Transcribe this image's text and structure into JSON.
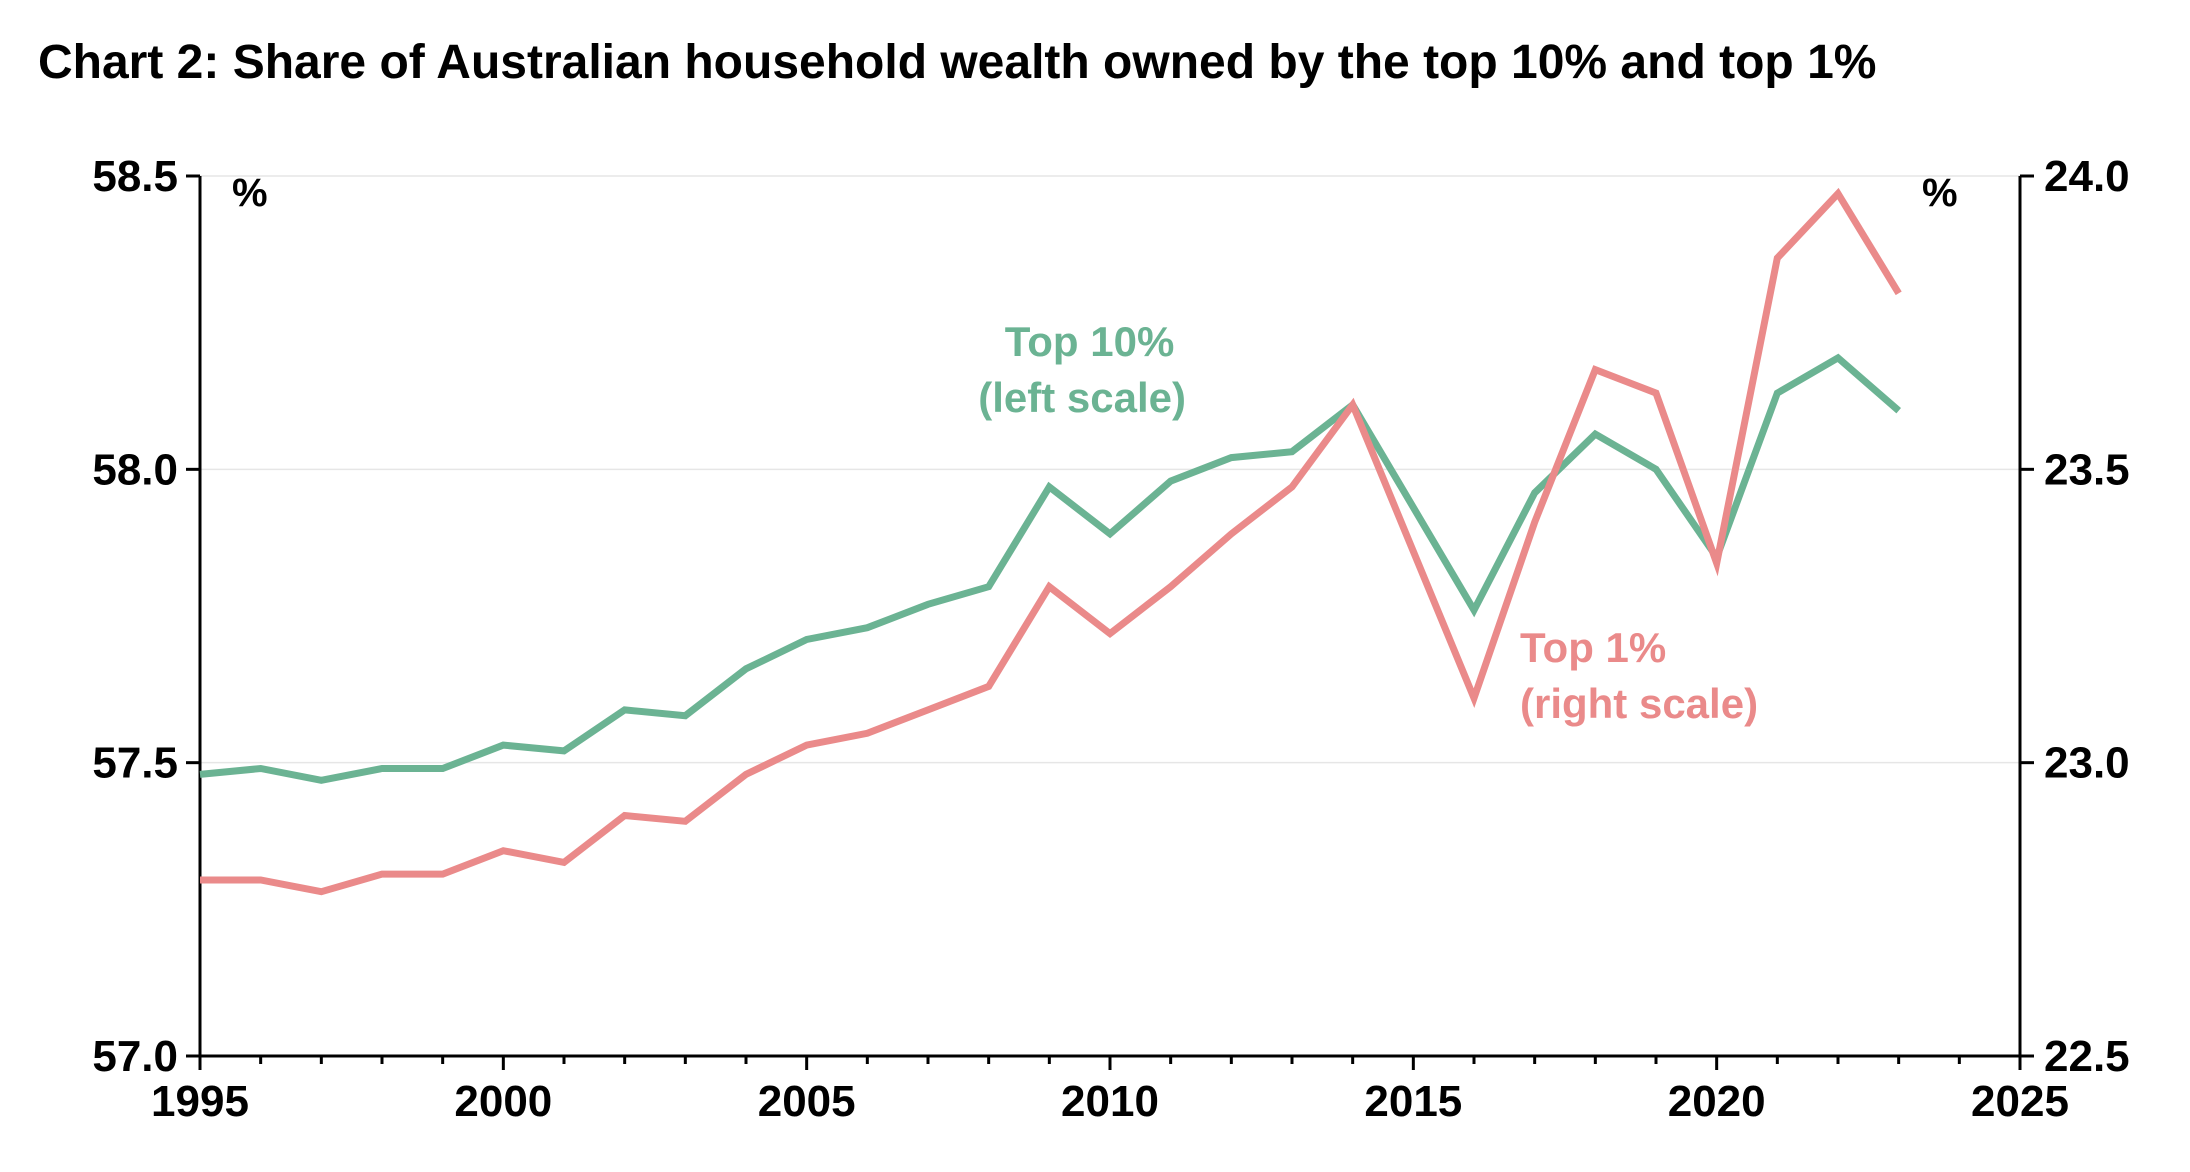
{
  "chart_data": {
    "type": "line",
    "title": "Chart 2: Share of Australian household wealth owned by the top 10% and top 1%",
    "left_axis": {
      "unit": "%",
      "range": [
        57.0,
        58.5
      ],
      "ticks": [
        "57.0",
        "57.5",
        "58.0",
        "58.5"
      ]
    },
    "right_axis": {
      "unit": "%",
      "range": [
        22.5,
        24.0
      ],
      "ticks": [
        "22.5",
        "23.0",
        "23.5",
        "24.0"
      ]
    },
    "x_axis": {
      "range": [
        1995,
        2025
      ],
      "ticks": [
        "1995",
        "2000",
        "2005",
        "2010",
        "2015",
        "2020",
        "2025"
      ]
    },
    "grid": "horizontal",
    "x": [
      1995,
      1996,
      1997,
      1998,
      1999,
      2000,
      2001,
      2002,
      2003,
      2004,
      2005,
      2006,
      2007,
      2008,
      2009,
      2010,
      2011,
      2012,
      2013,
      2014,
      2016,
      2017,
      2018,
      2019,
      2020,
      2021,
      2022,
      2023
    ],
    "series": [
      {
        "name": "Top 10%",
        "label_lines": [
          "Top 10%",
          "(left scale)"
        ],
        "axis": "left",
        "color": "#6bb393",
        "values": [
          57.48,
          57.49,
          57.47,
          57.49,
          57.49,
          57.53,
          57.52,
          57.59,
          57.58,
          57.66,
          57.71,
          57.73,
          57.77,
          57.8,
          57.97,
          57.89,
          57.98,
          58.02,
          58.03,
          58.11,
          57.76,
          57.96,
          58.06,
          58.0,
          57.85,
          58.13,
          58.19,
          58.1
        ]
      },
      {
        "name": "Top 1%",
        "label_lines": [
          "Top 1%",
          "(right scale)"
        ],
        "axis": "right",
        "color": "#ea8a8a",
        "values": [
          22.8,
          22.8,
          22.78,
          22.81,
          22.81,
          22.85,
          22.83,
          22.91,
          22.9,
          22.98,
          23.03,
          23.05,
          23.09,
          23.13,
          23.3,
          23.22,
          23.3,
          23.39,
          23.47,
          23.61,
          23.11,
          23.41,
          23.67,
          23.63,
          23.34,
          23.86,
          23.97,
          23.8
        ]
      }
    ]
  }
}
